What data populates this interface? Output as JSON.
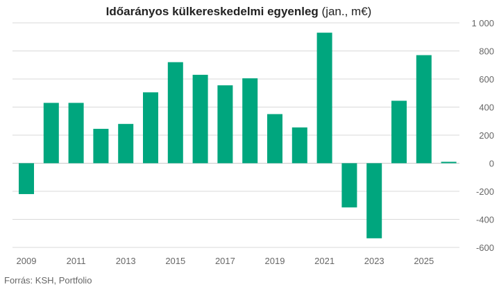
{
  "chart_data": {
    "type": "bar",
    "title": "Időarányos külkereskedelmi egyenleg",
    "title_suffix": " (jan., m€)",
    "source": "Forrás: KSH, Portfolio",
    "x": [
      2009,
      2010,
      2011,
      2012,
      2013,
      2014,
      2015,
      2016,
      2017,
      2018,
      2019,
      2020,
      2021,
      2022,
      2023,
      2024,
      2025,
      2026
    ],
    "values": [
      -220,
      430,
      430,
      245,
      280,
      505,
      720,
      630,
      555,
      605,
      350,
      255,
      930,
      -315,
      -535,
      445,
      770,
      10
    ],
    "x_tick_labels": [
      "2009",
      "2011",
      "2013",
      "2015",
      "2017",
      "2019",
      "2021",
      "2023",
      "2025"
    ],
    "y_tick_labels": [
      "1 000",
      "800",
      "600",
      "400",
      "200",
      "0",
      "-200",
      "-400",
      "-600"
    ],
    "y_ticks": [
      1000,
      800,
      600,
      400,
      200,
      0,
      -200,
      -400,
      -600
    ],
    "ylim": [
      -600,
      1000
    ],
    "xlabel": "",
    "ylabel": "",
    "bar_color": "#00a67e",
    "grid_color": "#d9d9d9",
    "legend": "none"
  }
}
